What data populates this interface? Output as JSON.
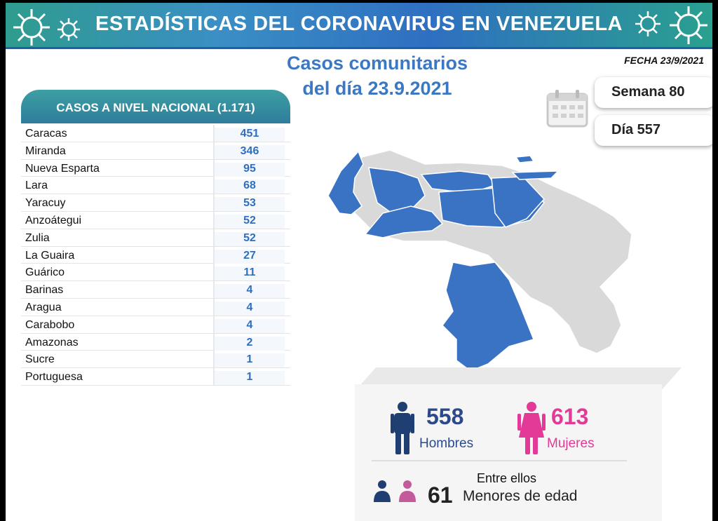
{
  "header": {
    "title": "ESTADÍSTICAS DEL CORONAVIRUS EN VENEZUELA",
    "subtitle_line1": "Casos comunitarios",
    "subtitle_line2": "del día 23.9.2021",
    "fecha": "FECHA 23/9/2021"
  },
  "badges": {
    "semana": "Semana 80",
    "dia": "Día 557"
  },
  "table": {
    "title": "CASOS A NIVEL NACIONAL (1.171)",
    "rows": [
      {
        "name": "Caracas",
        "value": "451"
      },
      {
        "name": "Miranda",
        "value": "346"
      },
      {
        "name": "Nueva Esparta",
        "value": "95"
      },
      {
        "name": "Lara",
        "value": "68"
      },
      {
        "name": "Yaracuy",
        "value": "53"
      },
      {
        "name": "Anzoátegui",
        "value": "52"
      },
      {
        "name": "Zulia",
        "value": "52"
      },
      {
        "name": "La Guaira",
        "value": "27"
      },
      {
        "name": "Guárico",
        "value": "11"
      },
      {
        "name": "Barinas",
        "value": "4"
      },
      {
        "name": "Aragua",
        "value": "4"
      },
      {
        "name": "Carabobo",
        "value": "4"
      },
      {
        "name": "Amazonas",
        "value": "2"
      },
      {
        "name": "Sucre",
        "value": "1"
      },
      {
        "name": "Portuguesa",
        "value": "1"
      }
    ]
  },
  "stats": {
    "men_count": "558",
    "men_label": "Hombres",
    "women_count": "613",
    "women_label": "Mujeres",
    "between_label": "Entre ellos",
    "minors_count": "61",
    "minors_label": "Menores de edad"
  },
  "colors": {
    "accent_blue": "#2f6fc1",
    "map_highlight": "#3a73c4",
    "map_base": "#d9d9d9",
    "men": "#2c4a8a",
    "women": "#e23a96",
    "table_header": "#2e7d9b"
  },
  "icons": [
    "virus-icon",
    "calendar-icon",
    "man-icon",
    "woman-icon",
    "child-icon"
  ]
}
